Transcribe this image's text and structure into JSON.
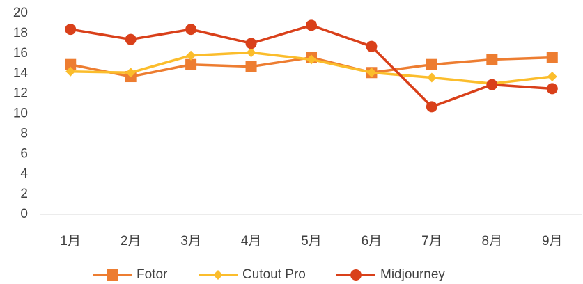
{
  "chart_data": {
    "type": "line",
    "categories": [
      "1月",
      "2月",
      "3月",
      "4月",
      "5月",
      "6月",
      "7月",
      "8月",
      "9月"
    ],
    "series": [
      {
        "name": "Fotor",
        "color": "#ed7d31",
        "marker": "square",
        "values": [
          14.9,
          13.7,
          14.9,
          14.7,
          15.6,
          14.1,
          14.9,
          15.4,
          15.6
        ]
      },
      {
        "name": "Cutout Pro",
        "color": "#fbbd2c",
        "marker": "diamond",
        "values": [
          14.2,
          14.1,
          15.8,
          16.1,
          15.4,
          14.1,
          13.6,
          13.0,
          13.7
        ]
      },
      {
        "name": "Midjourney",
        "color": "#d9401a",
        "marker": "circle",
        "values": [
          18.4,
          17.4,
          18.4,
          17.0,
          18.8,
          16.7,
          10.7,
          12.9,
          12.5
        ]
      }
    ],
    "ylim": [
      0,
      20
    ],
    "yticks": [
      0,
      2,
      4,
      6,
      8,
      10,
      12,
      14,
      16,
      18,
      20
    ],
    "grid": false,
    "legend": "bottom"
  }
}
